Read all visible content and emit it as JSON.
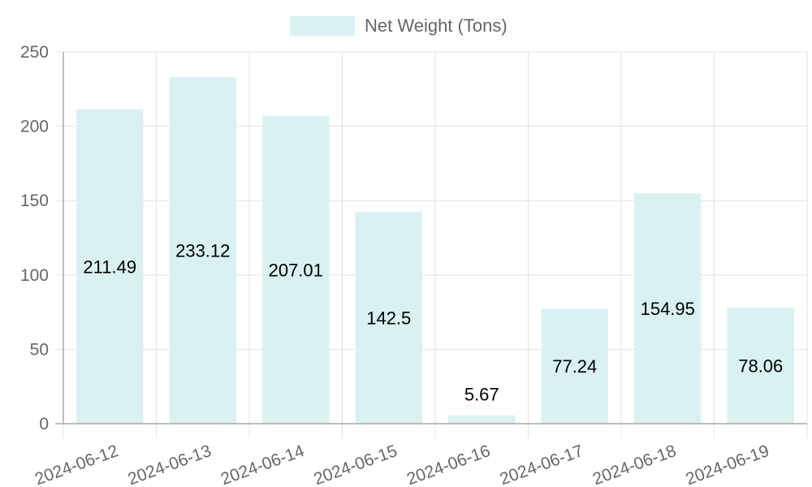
{
  "chart_data": {
    "type": "bar",
    "categories": [
      "2024-06-12",
      "2024-06-13",
      "2024-06-14",
      "2024-06-15",
      "2024-06-16",
      "2024-06-17",
      "2024-06-18",
      "2024-06-19"
    ],
    "series": [
      {
        "name": "Net Weight (Tons)",
        "values": [
          211.49,
          233.12,
          207.01,
          142.5,
          5.67,
          77.24,
          154.95,
          78.06
        ],
        "color": "#d9f1f1"
      }
    ],
    "data_labels": [
      "211.49",
      "233.12",
      "207.01",
      "142.5",
      "5.67",
      "77.24",
      "154.95",
      "78.06"
    ],
    "ylim": [
      0,
      250
    ],
    "yticks": [
      "0",
      "50",
      "100",
      "150",
      "200",
      "250"
    ],
    "grid": true,
    "legend_position": "top-center"
  }
}
